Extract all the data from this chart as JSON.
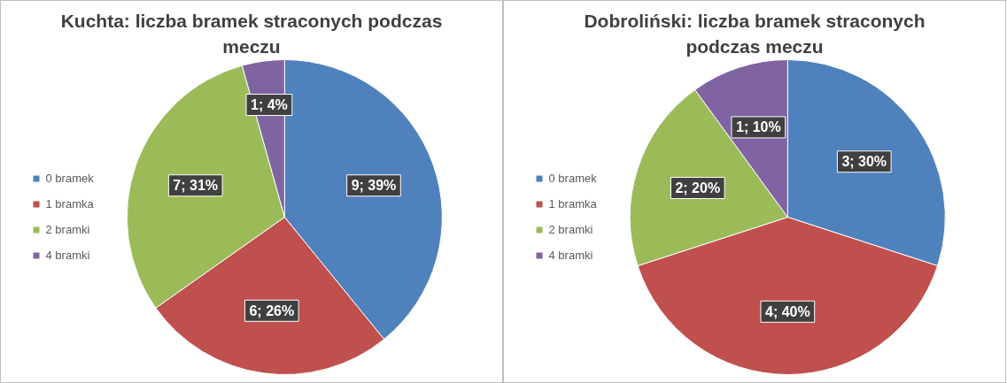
{
  "chart_data": [
    {
      "type": "pie",
      "title": "Kuchta: liczba bramek straconych podczas meczu",
      "categories": [
        "0 bramek",
        "1 bramka",
        "2 bramki",
        "4 bramki"
      ],
      "values": [
        9,
        6,
        7,
        1
      ],
      "colors": [
        "#4f81bd",
        "#c0504d",
        "#9bbb59",
        "#8064a2"
      ],
      "value_labels": [
        "9; 39%",
        "6; 26%",
        "7; 31%",
        "1; 4%"
      ],
      "legend": "left"
    },
    {
      "type": "pie",
      "title": "Dobroliński: liczba bramek straconych podczas meczu",
      "categories": [
        "0 bramek",
        "1 bramka",
        "2 bramki",
        "4 bramki"
      ],
      "values": [
        3,
        4,
        2,
        1
      ],
      "colors": [
        "#4f81bd",
        "#c0504d",
        "#9bbb59",
        "#8064a2"
      ],
      "value_labels": [
        "3; 30%",
        "4; 40%",
        "2; 20%",
        "1; 10%"
      ],
      "legend": "left"
    }
  ]
}
